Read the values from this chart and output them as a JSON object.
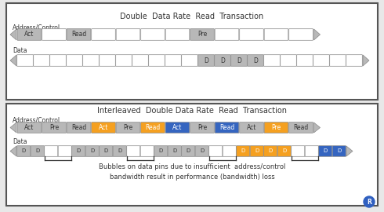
{
  "fig_bg": "#e8e8e8",
  "panel1_title": "Double  Data Rate  Read  Transaction",
  "panel2_title": "Interleaved  Double Data Rate  Read  Transaction",
  "bubble_text": "Bubbles on data pins due to insufficient  address/control\nbandwidth result in performance (bandwidth) loss",
  "colors": {
    "gray": "#b8b8b8",
    "white": "#ffffff",
    "orange": "#f5a020",
    "blue": "#3565c0",
    "panel_bg": "#ffffff",
    "border": "#444444",
    "text_label": "#333333",
    "bracket": "#333333"
  },
  "panel1_addr": [
    {
      "label": "Act",
      "color": "gray"
    },
    {
      "label": "",
      "color": "white"
    },
    {
      "label": "Read",
      "color": "gray"
    },
    {
      "label": "",
      "color": "white"
    },
    {
      "label": "",
      "color": "white"
    },
    {
      "label": "",
      "color": "white"
    },
    {
      "label": "",
      "color": "white"
    },
    {
      "label": "Pre",
      "color": "gray"
    },
    {
      "label": "",
      "color": "white"
    },
    {
      "label": "",
      "color": "white"
    },
    {
      "label": "",
      "color": "white"
    },
    {
      "label": "",
      "color": "white"
    }
  ],
  "panel1_data": [
    {
      "label": "",
      "color": "white"
    },
    {
      "label": "",
      "color": "white"
    },
    {
      "label": "",
      "color": "white"
    },
    {
      "label": "",
      "color": "white"
    },
    {
      "label": "",
      "color": "white"
    },
    {
      "label": "",
      "color": "white"
    },
    {
      "label": "",
      "color": "white"
    },
    {
      "label": "",
      "color": "white"
    },
    {
      "label": "",
      "color": "white"
    },
    {
      "label": "",
      "color": "white"
    },
    {
      "label": "",
      "color": "white"
    },
    {
      "label": "D",
      "color": "gray"
    },
    {
      "label": "D",
      "color": "gray"
    },
    {
      "label": "D",
      "color": "gray"
    },
    {
      "label": "D",
      "color": "gray"
    },
    {
      "label": "",
      "color": "white"
    },
    {
      "label": "",
      "color": "white"
    },
    {
      "label": "",
      "color": "white"
    },
    {
      "label": "",
      "color": "white"
    },
    {
      "label": "",
      "color": "white"
    },
    {
      "label": "",
      "color": "white"
    }
  ],
  "panel2_addr": [
    {
      "label": "Act",
      "color": "gray"
    },
    {
      "label": "Pre",
      "color": "gray"
    },
    {
      "label": "Read",
      "color": "gray"
    },
    {
      "label": "Act",
      "color": "orange"
    },
    {
      "label": "Pre",
      "color": "gray"
    },
    {
      "label": "Read",
      "color": "orange"
    },
    {
      "label": "Act",
      "color": "blue"
    },
    {
      "label": "Pre",
      "color": "gray"
    },
    {
      "label": "Read",
      "color": "blue"
    },
    {
      "label": "Act",
      "color": "gray"
    },
    {
      "label": "Pre",
      "color": "orange"
    },
    {
      "label": "Read",
      "color": "gray"
    }
  ],
  "panel2_data": [
    {
      "label": "D",
      "color": "gray"
    },
    {
      "label": "D",
      "color": "gray"
    },
    {
      "label": "",
      "color": "white"
    },
    {
      "label": "",
      "color": "white"
    },
    {
      "label": "D",
      "color": "gray"
    },
    {
      "label": "D",
      "color": "gray"
    },
    {
      "label": "D",
      "color": "gray"
    },
    {
      "label": "D",
      "color": "gray"
    },
    {
      "label": "",
      "color": "white"
    },
    {
      "label": "",
      "color": "white"
    },
    {
      "label": "D",
      "color": "gray"
    },
    {
      "label": "D",
      "color": "gray"
    },
    {
      "label": "D",
      "color": "gray"
    },
    {
      "label": "D",
      "color": "gray"
    },
    {
      "label": "",
      "color": "white"
    },
    {
      "label": "",
      "color": "white"
    },
    {
      "label": "D",
      "color": "orange"
    },
    {
      "label": "D",
      "color": "orange"
    },
    {
      "label": "D",
      "color": "orange"
    },
    {
      "label": "D",
      "color": "orange"
    },
    {
      "label": "",
      "color": "white"
    },
    {
      "label": "",
      "color": "white"
    },
    {
      "label": "D",
      "color": "blue"
    },
    {
      "label": "D",
      "color": "blue"
    }
  ],
  "bubble_bracket_starts": [
    2,
    8,
    14,
    20
  ],
  "bubble_bracket_spans": [
    2,
    2,
    2,
    2
  ]
}
